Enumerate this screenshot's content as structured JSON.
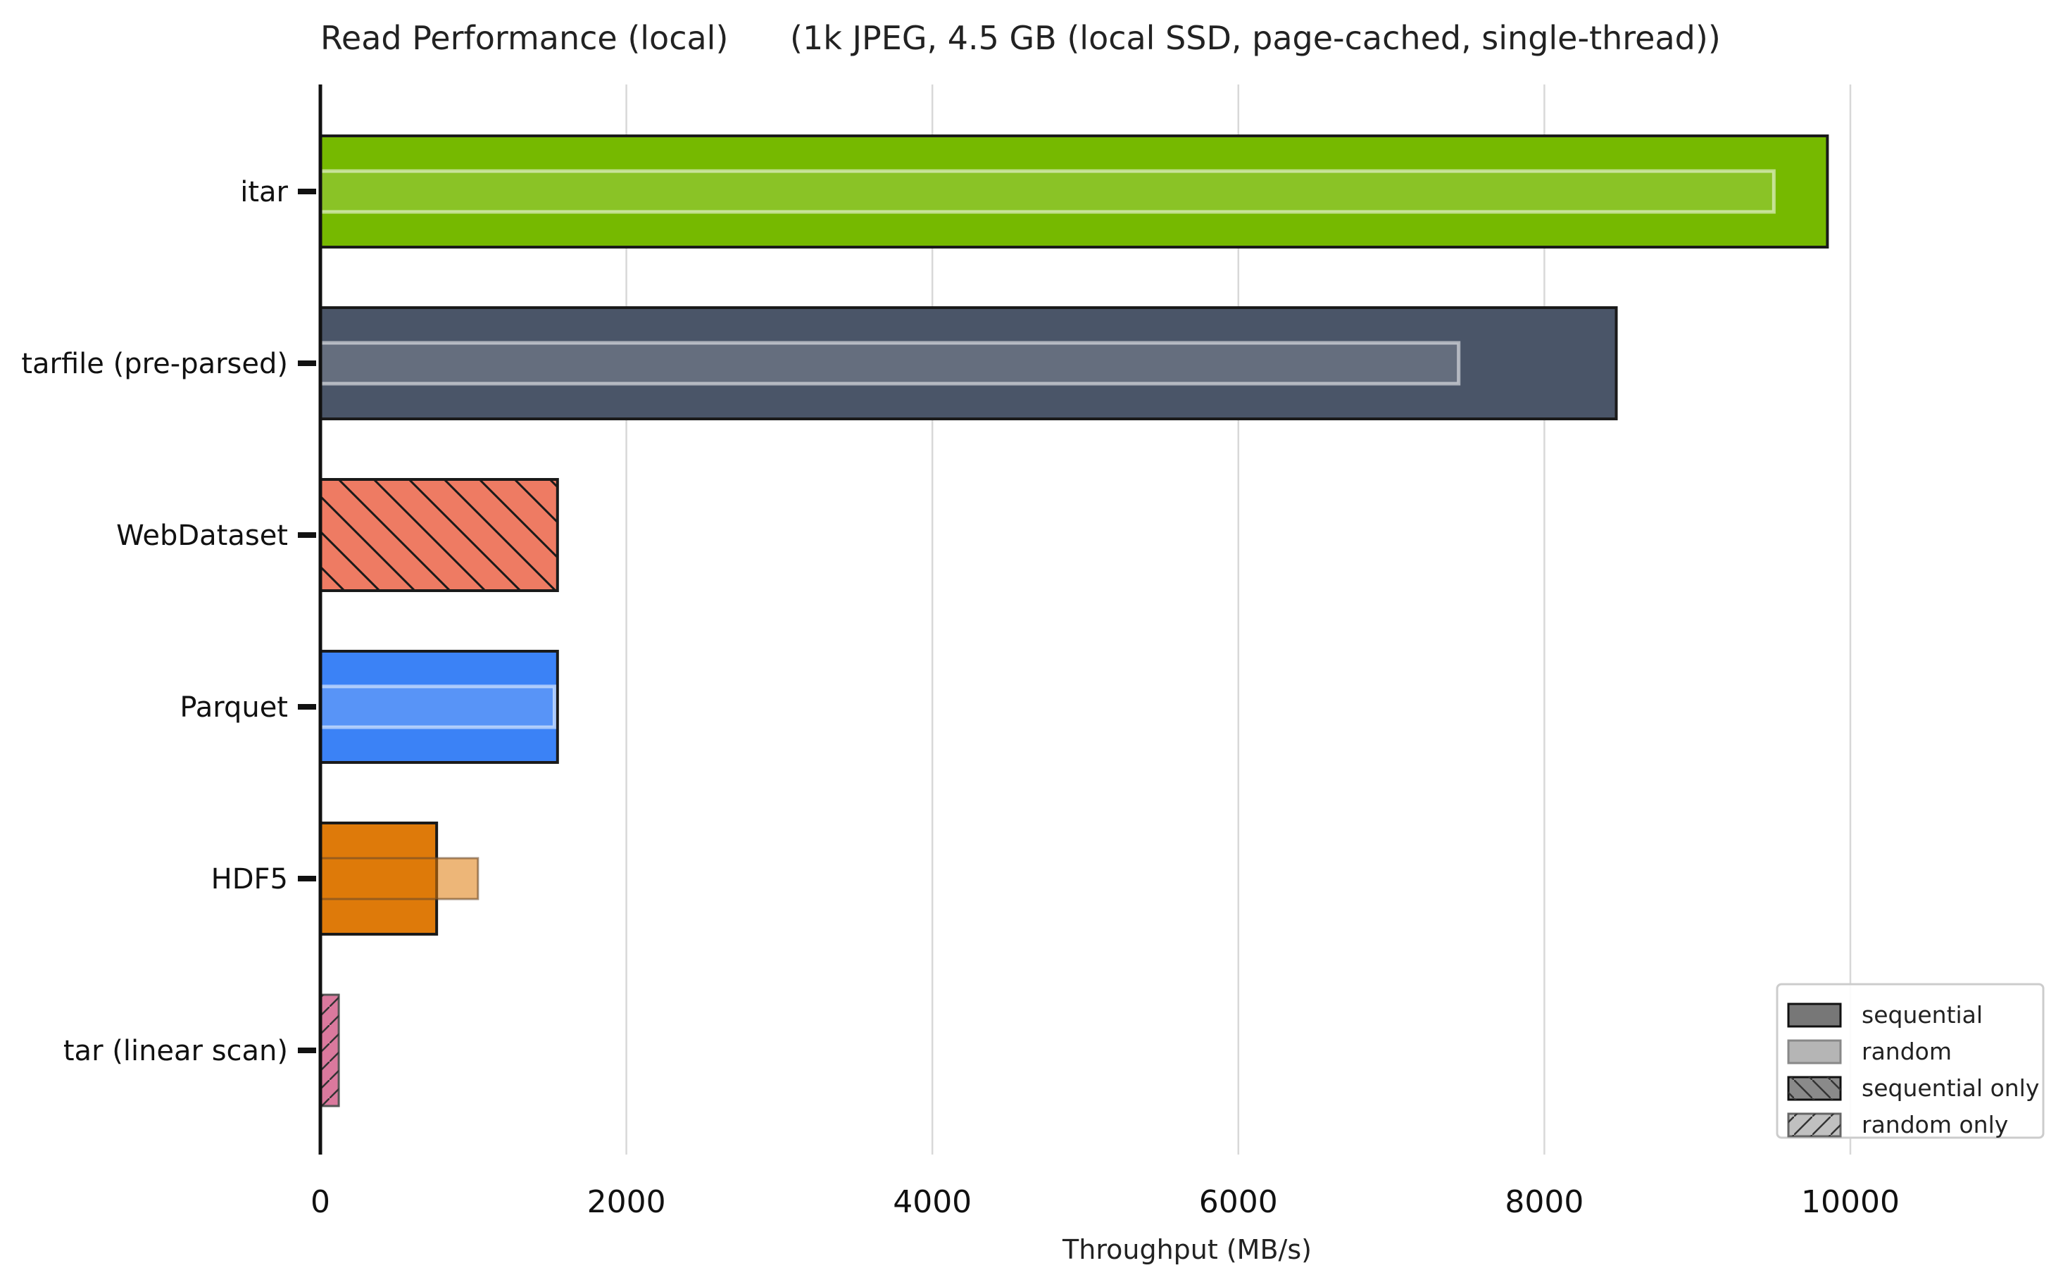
{
  "chart_data": {
    "type": "bar",
    "orientation": "horizontal",
    "title": "Read Performance (local)",
    "subtitle": "(1k JPEG, 4.5 GB (local SSD, page-cached, single-thread))",
    "xlabel": "Throughput (MB/s)",
    "ylabel": "",
    "xlim": [
      0,
      11000
    ],
    "xticks": [
      0,
      2000,
      4000,
      6000,
      8000,
      10000
    ],
    "grid": "vertical",
    "categories": [
      "itar",
      "tarfile (pre-parsed)",
      "WebDataset",
      "Parquet",
      "HDF5",
      "tar (linear scan)"
    ],
    "colors": [
      "#76b900",
      "#4a5568",
      "#ee7b63",
      "#3b82f6",
      "#de7a0a",
      "#d4628c"
    ],
    "series": [
      {
        "name": "sequential",
        "values": [
          9850,
          8470,
          null,
          1550,
          760,
          null
        ]
      },
      {
        "name": "random",
        "values": [
          9500,
          7440,
          null,
          1530,
          1030,
          null
        ]
      },
      {
        "name": "sequential only",
        "values": [
          null,
          null,
          1550,
          null,
          null,
          null
        ]
      },
      {
        "name": "random only",
        "values": [
          null,
          null,
          null,
          null,
          null,
          120
        ]
      }
    ],
    "legend": {
      "position": "bottom-right",
      "entries": [
        "sequential",
        "random",
        "sequential only",
        "random only"
      ]
    }
  }
}
